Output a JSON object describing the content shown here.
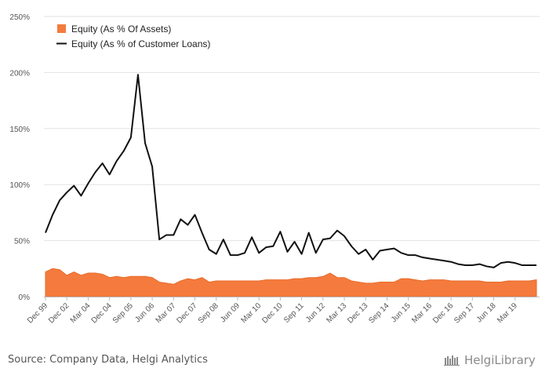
{
  "chart_data": {
    "type": "line",
    "y_tick_labels": [
      "0%",
      "50%",
      "100%",
      "150%",
      "200%",
      "250%"
    ],
    "y_ticks": [
      0,
      50,
      100,
      150,
      200,
      250
    ],
    "ylim": [
      0,
      250
    ],
    "x_tick_labels": [
      "Dec 99",
      "Dec 02",
      "Mar 04",
      "Dec 04",
      "Sep 05",
      "Jun 06",
      "Mar 07",
      "Dec 07",
      "Sep 08",
      "Jun 09",
      "Mar 10",
      "Dec 10",
      "Sep 11",
      "Jun 12",
      "Mar 13",
      "Dec 13",
      "Sep 14",
      "Jun 15",
      "Mar 16",
      "Dec 16",
      "Sep 17",
      "Jun 18",
      "Mar 19"
    ],
    "x_tick_positions": [
      0,
      3,
      6,
      9,
      12,
      15,
      18,
      21,
      24,
      27,
      30,
      33,
      36,
      39,
      42,
      45,
      48,
      51,
      54,
      57,
      60,
      63,
      66
    ],
    "grid": true,
    "legend_position": "top-left",
    "series": [
      {
        "name": "Equity (As % Of Assets)",
        "type": "area",
        "color": "#f47b3d",
        "values": [
          22,
          25,
          24,
          19,
          22,
          19,
          21,
          21,
          20,
          17,
          18,
          17,
          18,
          18,
          18,
          17,
          13,
          12,
          11,
          14,
          16,
          15,
          17,
          13,
          14,
          14,
          14,
          14,
          14,
          14,
          14,
          15,
          15,
          15,
          15,
          16,
          16,
          17,
          17,
          18,
          21,
          17,
          17,
          14,
          13,
          12,
          12,
          13,
          13,
          13,
          16,
          16,
          15,
          14,
          15,
          15,
          15,
          14,
          14,
          14,
          14,
          14,
          13,
          13,
          13,
          14,
          14,
          14,
          14,
          15
        ]
      },
      {
        "name": "Equity (As % of Customer Loans)",
        "type": "line",
        "color": "#111111",
        "values": [
          57,
          73,
          86,
          93,
          99,
          90,
          101,
          111,
          119,
          109,
          121,
          130,
          142,
          198,
          137,
          116,
          51,
          55,
          55,
          69,
          64,
          73,
          57,
          42,
          38,
          51,
          37,
          37,
          39,
          53,
          39,
          44,
          45,
          58,
          40,
          49,
          38,
          57,
          39,
          51,
          52,
          59,
          54,
          45,
          38,
          42,
          33,
          41,
          42,
          43,
          39,
          37,
          37,
          35,
          34,
          33,
          32,
          31,
          29,
          28,
          28,
          29,
          27,
          26,
          30,
          31,
          30,
          28,
          28,
          28
        ]
      }
    ]
  },
  "footer": {
    "source": "Source: Company Data, Helgi Analytics",
    "logo_text": "HelgiLibrary",
    "logo_icon": "helgi-library-bookshelf-icon"
  }
}
